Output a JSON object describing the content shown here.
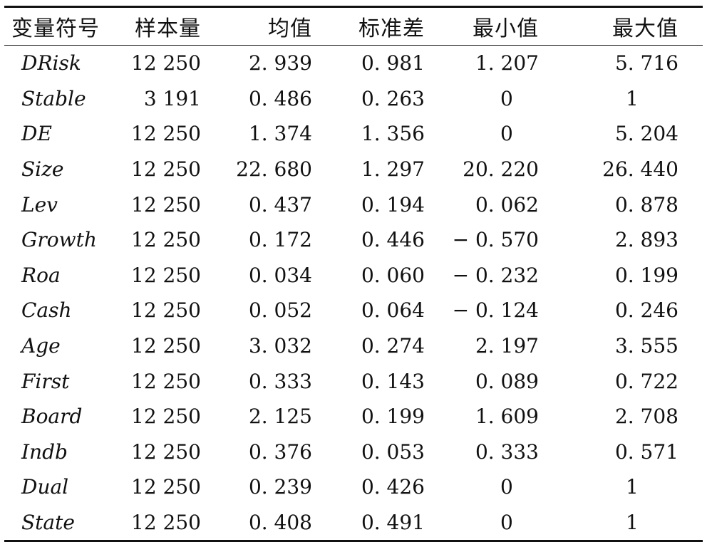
{
  "table": {
    "headers": [
      "变量符号",
      "样本量",
      "均值",
      "标准差",
      "最小值",
      "最大值"
    ],
    "rows": [
      {
        "variable": "DRisk",
        "n": "12 250",
        "mean": "2. 939",
        "sd": "0. 981",
        "min": "1. 207",
        "max": "5. 716"
      },
      {
        "variable": "Stable",
        "n": "3 191",
        "mean": "0. 486",
        "sd": "0. 263",
        "min": "0",
        "max": "1"
      },
      {
        "variable": "DE",
        "n": "12 250",
        "mean": "1. 374",
        "sd": "1. 356",
        "min": "0",
        "max": "5. 204"
      },
      {
        "variable": "Size",
        "n": "12 250",
        "mean": "22. 680",
        "sd": "1. 297",
        "min": "20. 220",
        "max": "26. 440"
      },
      {
        "variable": "Lev",
        "n": "12 250",
        "mean": "0. 437",
        "sd": "0. 194",
        "min": "0. 062",
        "max": "0. 878"
      },
      {
        "variable": "Growth",
        "n": "12 250",
        "mean": "0. 172",
        "sd": "0. 446",
        "min": "− 0. 570",
        "max": "2. 893"
      },
      {
        "variable": "Roa",
        "n": "12 250",
        "mean": "0. 034",
        "sd": "0. 060",
        "min": "− 0. 232",
        "max": "0. 199"
      },
      {
        "variable": "Cash",
        "n": "12 250",
        "mean": "0. 052",
        "sd": "0. 064",
        "min": "− 0. 124",
        "max": "0. 246"
      },
      {
        "variable": "Age",
        "n": "12 250",
        "mean": "3. 032",
        "sd": "0. 274",
        "min": "2. 197",
        "max": "3. 555"
      },
      {
        "variable": "First",
        "n": "12 250",
        "mean": "0. 333",
        "sd": "0. 143",
        "min": "0. 089",
        "max": "0. 722"
      },
      {
        "variable": "Board",
        "n": "12 250",
        "mean": "2. 125",
        "sd": "0. 199",
        "min": "1. 609",
        "max": "2. 708"
      },
      {
        "variable": "Indb",
        "n": "12 250",
        "mean": "0. 376",
        "sd": "0. 053",
        "min": "0. 333",
        "max": "0. 571"
      },
      {
        "variable": "Dual",
        "n": "12 250",
        "mean": "0. 239",
        "sd": "0. 426",
        "min": "0",
        "max": "1"
      },
      {
        "variable": "State",
        "n": "12 250",
        "mean": "0. 408",
        "sd": "0. 491",
        "min": "0",
        "max": "1"
      }
    ]
  }
}
